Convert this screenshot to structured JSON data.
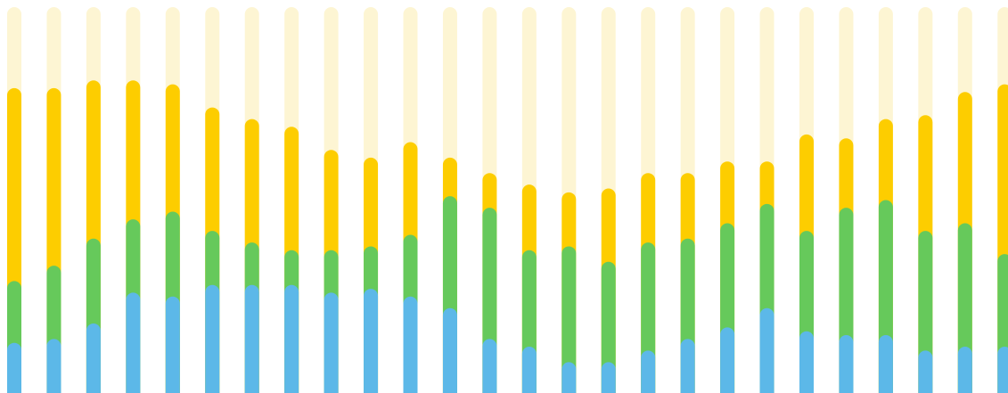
{
  "chart_data": {
    "type": "bar",
    "stacked": true,
    "background_track": true,
    "grid": false,
    "legend": "none",
    "ylim": [
      0,
      100
    ],
    "categories": [
      "",
      "",
      "",
      "",
      "",
      "",
      "",
      "",
      "",
      "",
      "",
      "",
      "",
      "",
      "",
      "",
      "",
      "",
      "",
      "",
      "",
      "",
      "",
      "",
      "",
      ""
    ],
    "colors": {
      "track": "#fdf5d3",
      "blue": "#5cb8e8",
      "green": "#66c95b",
      "yellow": "#fdcd00"
    },
    "series": [
      {
        "color_key": "blue",
        "values": [
          13,
          14,
          18,
          26,
          25,
          28,
          28,
          28,
          26,
          27,
          25,
          22,
          14,
          12,
          8,
          8,
          11,
          14,
          17,
          22,
          16,
          15,
          15,
          11,
          12,
          12
        ]
      },
      {
        "color_key": "green",
        "values": [
          16,
          19,
          22,
          19,
          22,
          14,
          11,
          9,
          11,
          11,
          16,
          29,
          34,
          25,
          30,
          26,
          28,
          26,
          27,
          27,
          26,
          33,
          35,
          31,
          32,
          24
        ]
      },
      {
        "color_key": "yellow",
        "values": [
          50,
          46,
          41,
          36,
          33,
          32,
          32,
          32,
          26,
          23,
          24,
          10,
          9,
          17,
          14,
          19,
          18,
          17,
          16,
          11,
          25,
          18,
          21,
          30,
          34,
          44
        ]
      }
    ]
  }
}
